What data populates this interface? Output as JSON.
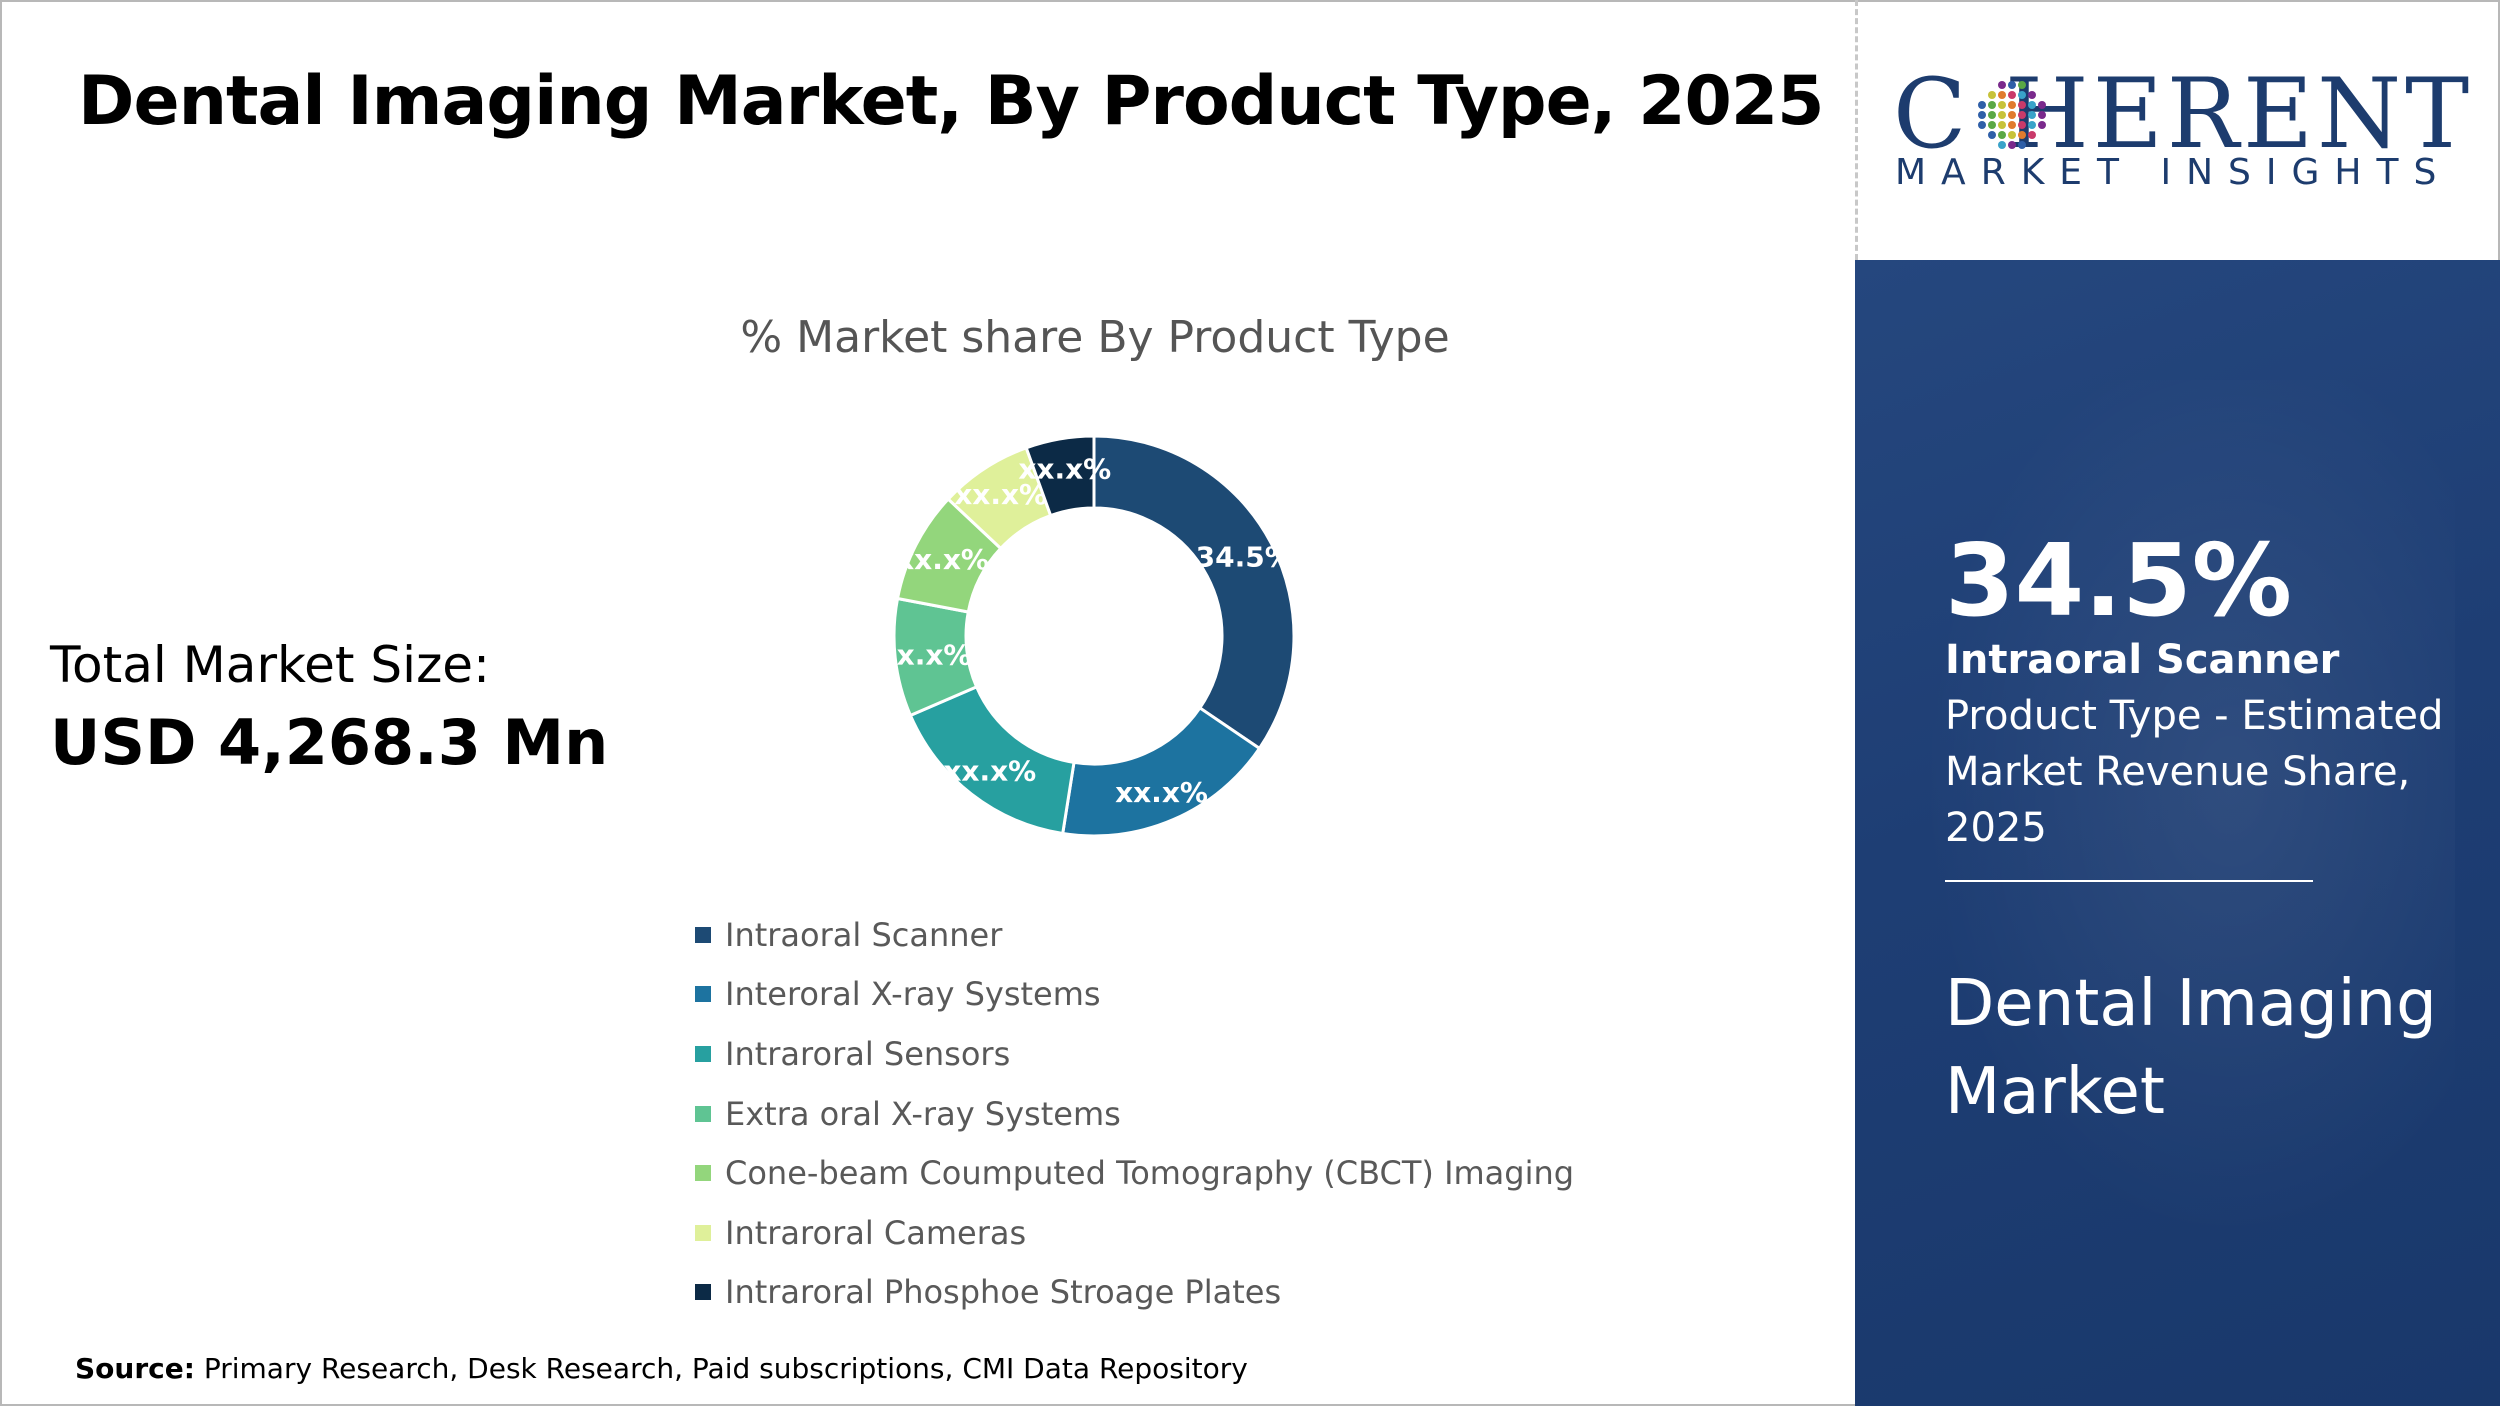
{
  "header": {
    "title": "Dental Imaging Market, By Product Type, 2025"
  },
  "summary": {
    "total_label": "Total Market Size:",
    "total_value": "USD 4,268.3 Mn"
  },
  "source": {
    "label": "Source:",
    "text": "Primary Research, Desk Research, Paid subscriptions, CMI Data Repository"
  },
  "logo": {
    "wordmark": "C HERENT",
    "tagline": "MARKET INSIGHTS"
  },
  "panel": {
    "big_value": "34.5%",
    "desc_bold": "Intraoral Scanner",
    "desc_rest": " Product Type - Estimated Market Revenue Share, 2025",
    "market_name": "Dental Imaging Market"
  },
  "chart_data": {
    "type": "pie",
    "donut": true,
    "title": "% Market share By Product Type",
    "legend_position": "bottom",
    "slices": [
      {
        "label": "Intraoral Scanner",
        "value": 34.5,
        "display": "34.5%",
        "color": "#1d4a74"
      },
      {
        "label": "Interoral X-ray Systems",
        "value": 18.0,
        "display": "xx.x%",
        "color": "#1d73a0"
      },
      {
        "label": "Intraroral Sensors",
        "value": 16.0,
        "display": "xx.x%",
        "color": "#27a0a0"
      },
      {
        "label": "Extra oral X-ray Systems",
        "value": 9.5,
        "display": "xx.x%",
        "color": "#5fc493"
      },
      {
        "label": "Cone-beam Coumputed Tomography (CBCT) Imaging",
        "value": 9.0,
        "display": "xx.x%",
        "color": "#93d67c"
      },
      {
        "label": "Intraroral Cameras",
        "value": 7.5,
        "display": "xx.x%",
        "color": "#dff09a"
      },
      {
        "label": "Intraroral Phosphoe Stroage Plates",
        "value": 5.5,
        "display": "xx.x%",
        "color": "#0c2a46"
      }
    ]
  }
}
